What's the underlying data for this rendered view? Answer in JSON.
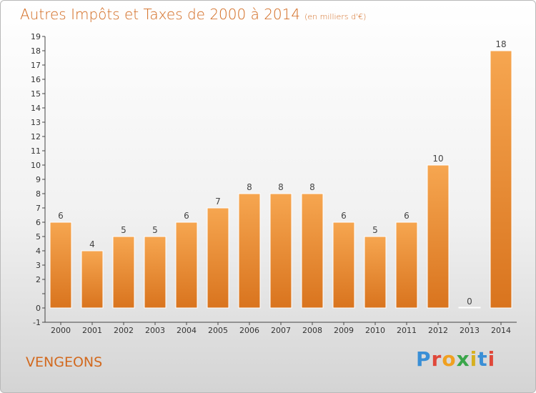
{
  "header": {
    "title": "Autres Impôts et Taxes de 2000 à 2014",
    "unit": "(en milliers d'€)"
  },
  "footer": {
    "commune": "VENGEONS",
    "brand": "Proxiti"
  },
  "colors": {
    "title": "#d2691e",
    "bar_top": "#f6a650",
    "bar_bottom": "#d9741e",
    "brand_letters": [
      "#3a8fd6",
      "#e0483a",
      "#f0a020",
      "#3aa64a",
      "#d6b020",
      "#3a8fd6",
      "#e0483a"
    ]
  },
  "chart_data": {
    "type": "bar",
    "categories": [
      "2000",
      "2001",
      "2002",
      "2003",
      "2004",
      "2005",
      "2006",
      "2007",
      "2008",
      "2009",
      "2010",
      "2011",
      "2012",
      "2013",
      "2014"
    ],
    "values": [
      6,
      4,
      5,
      5,
      6,
      7,
      8,
      8,
      8,
      6,
      5,
      6,
      10,
      0,
      18
    ],
    "data_labels": [
      "6",
      "4",
      "5",
      "5",
      "6",
      "7",
      "8",
      "8",
      "8",
      "6",
      "5",
      "6",
      "10",
      "0",
      "18"
    ],
    "y_ticks": [
      -1,
      0,
      1,
      2,
      3,
      4,
      5,
      6,
      7,
      8,
      9,
      10,
      11,
      12,
      13,
      14,
      15,
      16,
      17,
      18,
      19
    ],
    "y_tick_labels": [
      "-1",
      "0",
      "",
      "2",
      "3",
      "4",
      "5",
      "6",
      "7",
      "8",
      "9",
      "10",
      "11",
      "12",
      "13",
      "14",
      "15",
      "16",
      "17",
      "18",
      "19"
    ],
    "ylim": [
      -1,
      19
    ],
    "grid": false,
    "legend": "none",
    "title": "Autres Impôts et Taxes de 2000 à 2014",
    "xlabel": "",
    "ylabel": ""
  }
}
